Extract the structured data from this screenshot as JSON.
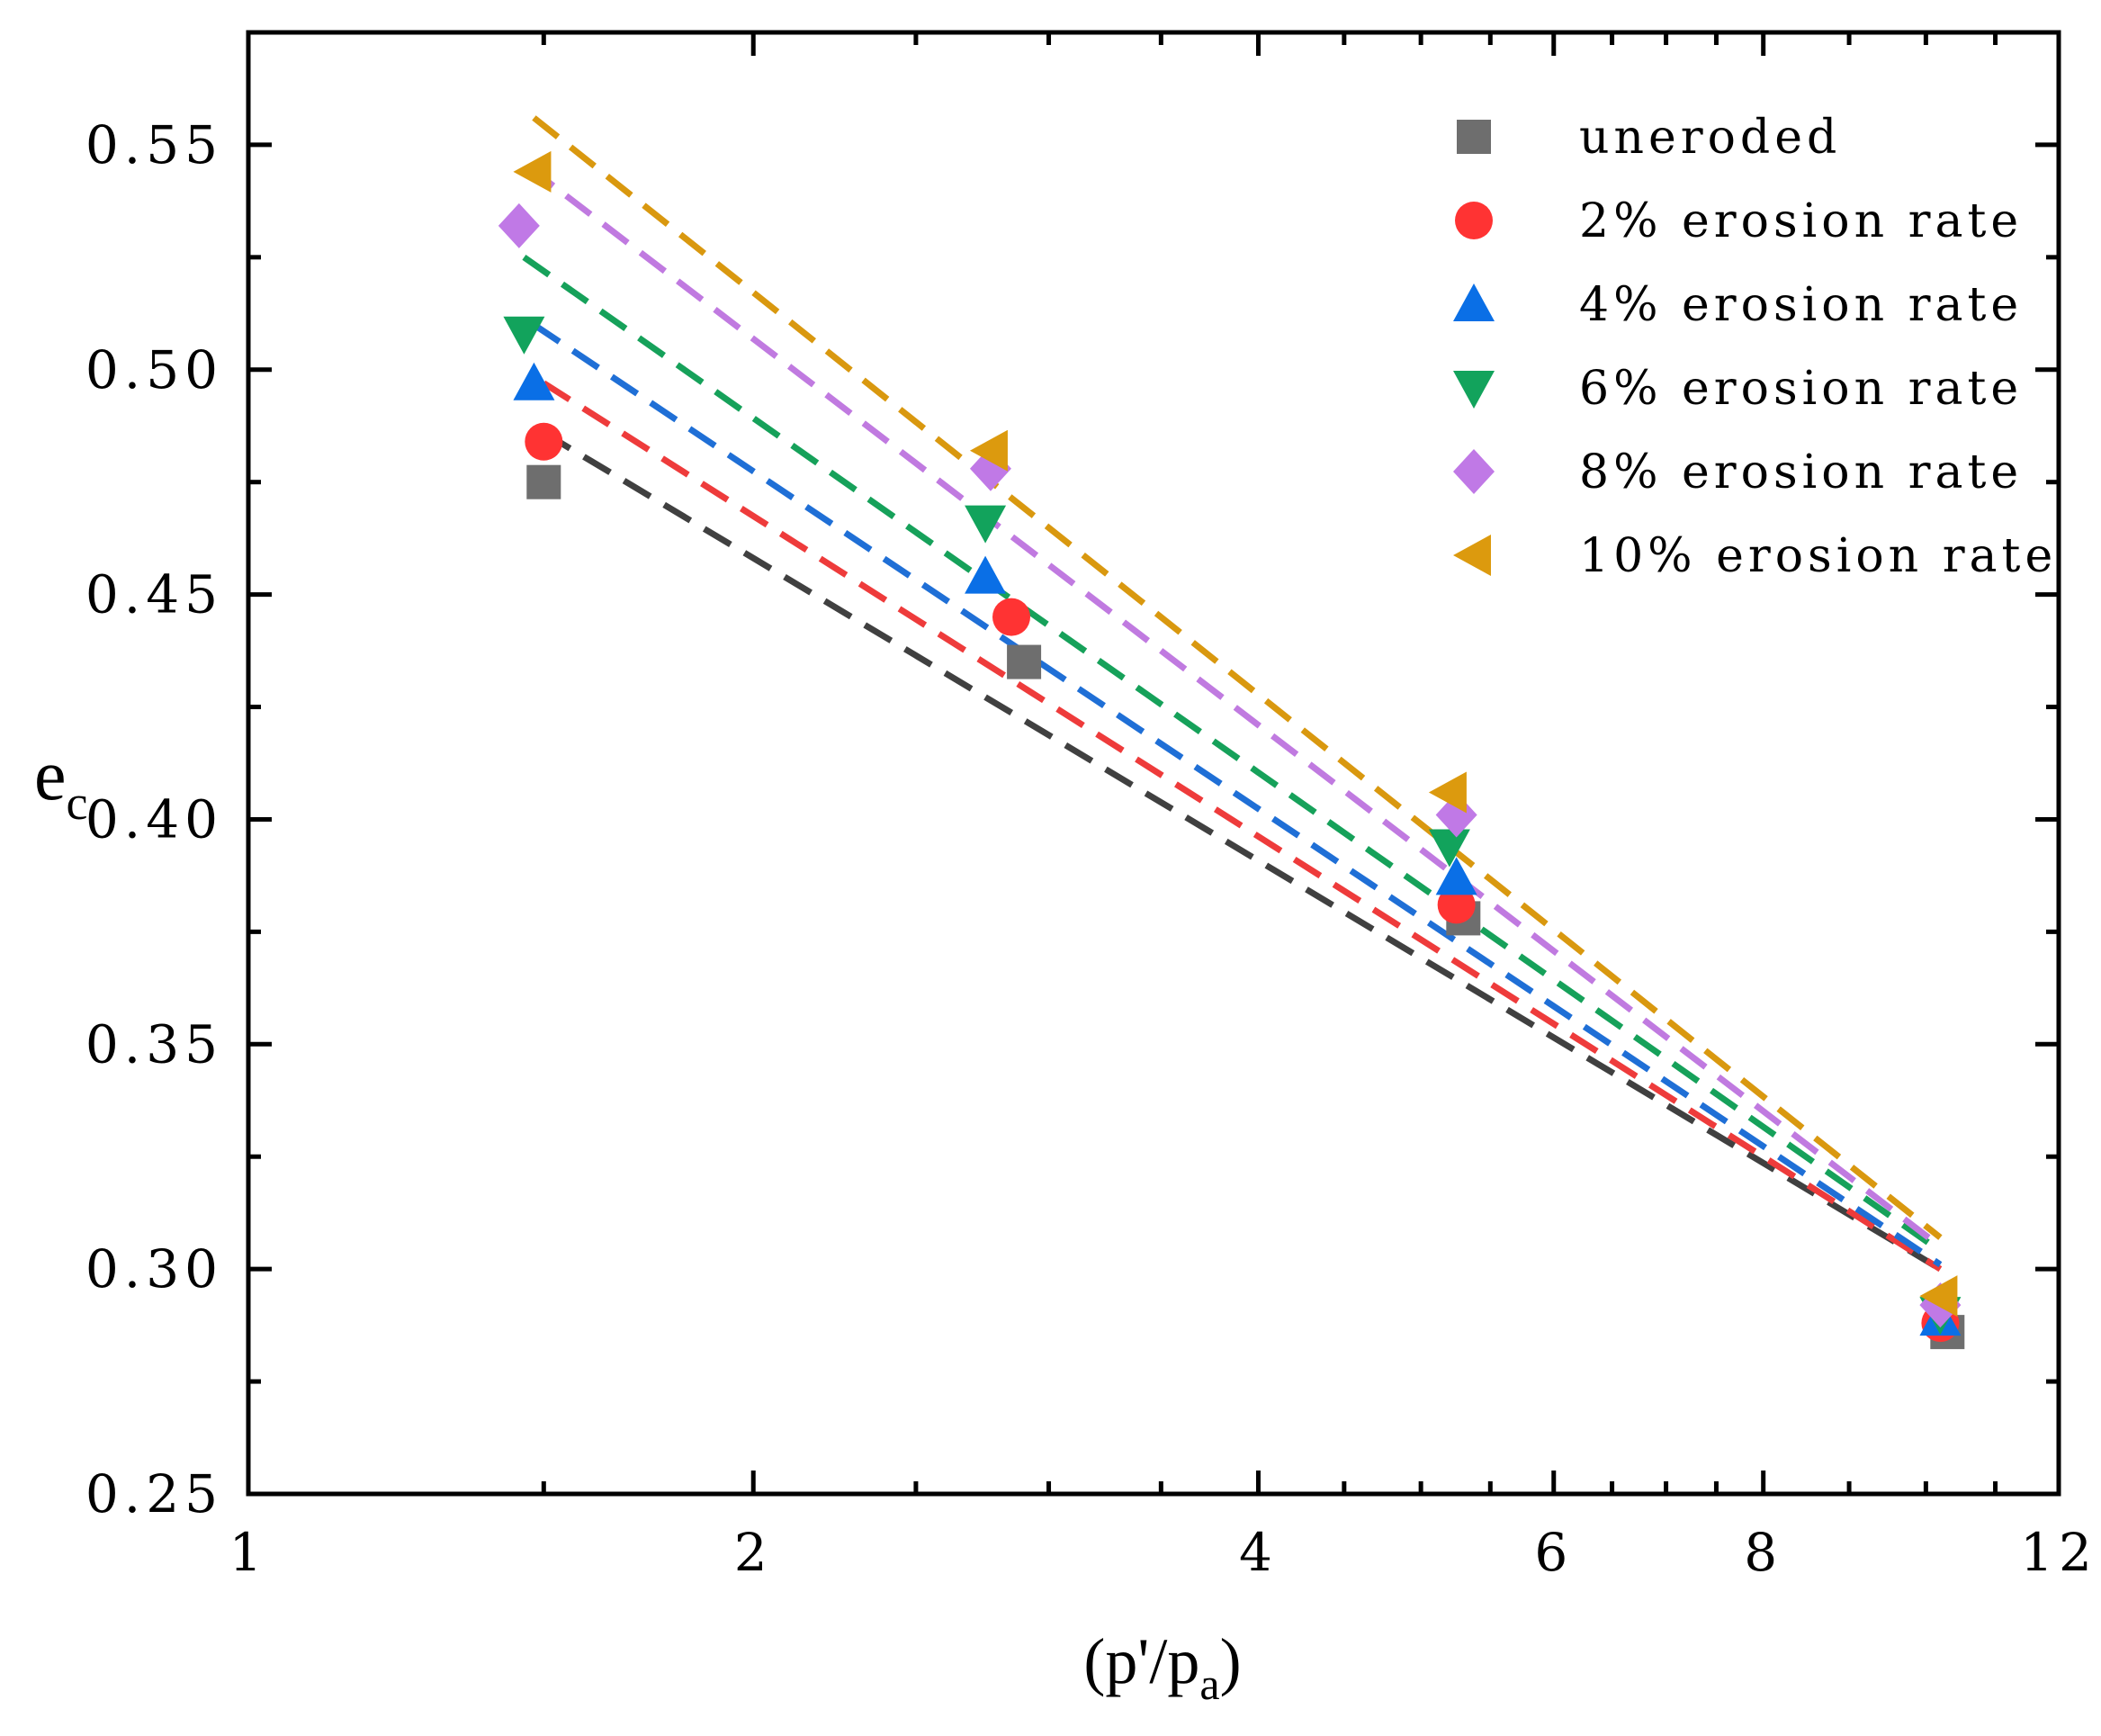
{
  "chart_data": {
    "type": "scatter",
    "title": "",
    "xlabel": "(p'/pa)",
    "xlabel_main": "(p'/p",
    "xlabel_sub": "a",
    "xlabel_close": ")",
    "ylabel": "ec",
    "ylabel_main": "e",
    "ylabel_sub": "c",
    "xscale": "log",
    "xlim": [
      1,
      12
    ],
    "ylim": [
      0.25,
      0.575
    ],
    "xticks": [
      1,
      2,
      4,
      6,
      8,
      12
    ],
    "xtick_labels": [
      "1",
      "2",
      "4",
      "6",
      "8",
      "12"
    ],
    "yticks": [
      0.25,
      0.3,
      0.35,
      0.4,
      0.45,
      0.5,
      0.55
    ],
    "ytick_labels": [
      "0.25",
      "0.30",
      "0.35",
      "0.40",
      "0.45",
      "0.50",
      "0.55"
    ],
    "legend_position": "top-right",
    "series": [
      {
        "name": "uneroded",
        "marker": "square",
        "color": "#6e6e6e",
        "fit_color": "#404040",
        "x": [
          1.5,
          2.9,
          5.3,
          10.3
        ],
        "y": [
          0.475,
          0.435,
          0.378,
          0.286
        ],
        "fit_x": [
          1.5,
          10.2
        ],
        "fit_y": [
          0.486,
          0.3
        ]
      },
      {
        "name": "2% erosion rate",
        "marker": "circle",
        "color": "#ff3333",
        "fit_color": "#ee3b3b",
        "x": [
          1.5,
          2.85,
          5.25,
          10.2
        ],
        "y": [
          0.484,
          0.445,
          0.381,
          0.288
        ],
        "fit_x": [
          1.5,
          10.2
        ],
        "fit_y": [
          0.497,
          0.3
        ]
      },
      {
        "name": "4% erosion rate",
        "marker": "triangle-up",
        "color": "#0a6fe6",
        "fit_color": "#1f6fd6",
        "x": [
          1.48,
          2.75,
          5.25,
          10.2
        ],
        "y": [
          0.497,
          0.454,
          0.387,
          0.289
        ],
        "fit_x": [
          1.48,
          10.2
        ],
        "fit_y": [
          0.51,
          0.301
        ]
      },
      {
        "name": "6% erosion rate",
        "marker": "triangle-down",
        "color": "#12a35c",
        "fit_color": "#16a15a",
        "x": [
          1.46,
          2.75,
          5.2,
          10.2
        ],
        "y": [
          0.508,
          0.466,
          0.394,
          0.29
        ],
        "fit_x": [
          1.46,
          10.2
        ],
        "fit_y": [
          0.525,
          0.304
        ]
      },
      {
        "name": "8% erosion rate",
        "marker": "diamond",
        "color": "#c079e6",
        "fit_color": "#c07ae0",
        "x": [
          1.45,
          2.77,
          5.25,
          10.2
        ],
        "y": [
          0.532,
          0.478,
          0.401,
          0.292
        ],
        "fit_x": [
          1.47,
          10.2
        ],
        "fit_y": [
          0.545,
          0.305
        ]
      },
      {
        "name": "10% erosion rate",
        "marker": "triangle-left",
        "color": "#dc9a0e",
        "fit_color": "#d9980f",
        "x": [
          1.48,
          2.77,
          5.2,
          10.2
        ],
        "y": [
          0.544,
          0.482,
          0.406,
          0.294
        ],
        "fit_x": [
          1.48,
          10.2
        ],
        "fit_y": [
          0.556,
          0.307
        ]
      }
    ]
  }
}
